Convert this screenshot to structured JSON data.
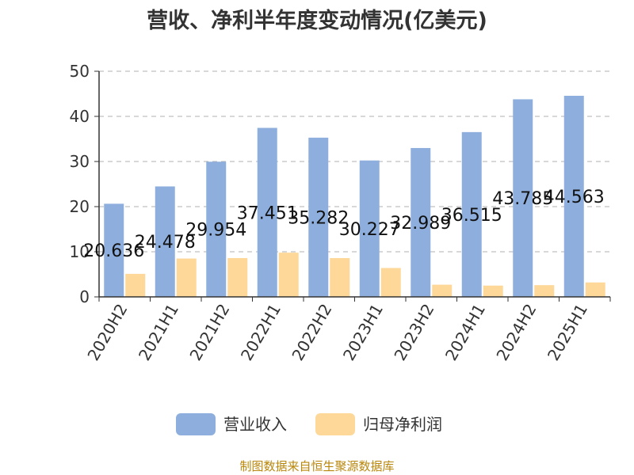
{
  "title": "营收、净利半年度变动情况(亿美元)",
  "footer": "制图数据来自恒生聚源数据库",
  "chart_data": {
    "type": "bar",
    "categories": [
      "2020H2",
      "2021H1",
      "2021H2",
      "2022H1",
      "2022H2",
      "2023H1",
      "2023H2",
      "2024H1",
      "2024H2",
      "2025H1"
    ],
    "series": [
      {
        "name": "营业收入",
        "color": "#8eafdd",
        "values": [
          20.636,
          24.478,
          29.954,
          37.451,
          35.282,
          30.227,
          32.989,
          36.515,
          43.785,
          44.563
        ],
        "labels": [
          "20.636",
          "24.478",
          "29.954",
          "37.451",
          "35.282",
          "30.227",
          "32.989",
          "36.515",
          "43.785",
          "44.563"
        ]
      },
      {
        "name": "归母净利润",
        "color": "#fdd899",
        "values": [
          5.1,
          8.5,
          8.6,
          9.8,
          8.6,
          6.4,
          2.7,
          2.5,
          2.6,
          3.2
        ]
      }
    ],
    "ylim": [
      0,
      50
    ],
    "yticks": [
      "0",
      "10",
      "20",
      "30",
      "40",
      "50"
    ],
    "grid": true,
    "legend": "bottom"
  }
}
